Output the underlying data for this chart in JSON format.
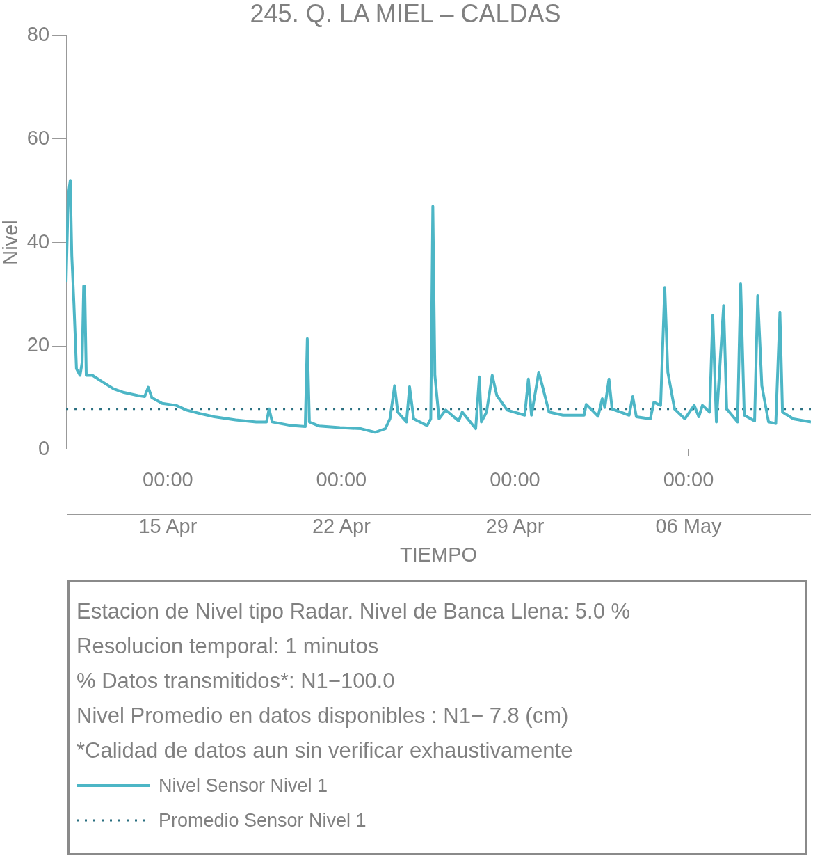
{
  "chart_data": {
    "type": "line",
    "title": "245. Q. LA MIEL – CALDAS",
    "xlabel": "TIEMPO",
    "ylabel": "Nivel",
    "xlim": [
      "--04-10T21:30",
      "--05-10T22:30"
    ],
    "xticks": [
      {
        "value": "--04-15T00:00",
        "label": "00:00\n15 Apr"
      },
      {
        "value": "--04-22T00:00",
        "label": "00:00\n22 Apr"
      },
      {
        "value": "--04-29T00:00",
        "label": "00:00\n29 Apr"
      },
      {
        "value": "--05-06T00:00",
        "label": "00:00\n06 May"
      }
    ],
    "ylim": [
      0,
      80
    ],
    "yticks": [
      0,
      20,
      40,
      60,
      80
    ],
    "grid": false,
    "legend": "bottom",
    "marker": "none",
    "annotations": [
      "Estacion de Nivel tipo Radar. Nivel de Banca Llena:  5.0 %",
      "Resolucion temporal: 1 minutos",
      "% Datos transmitidos*: N1−100.0",
      "Nivel Promedio en datos disponibles : N1−  7.8 (cm)",
      "*Calidad de datos aun sin verificar exhaustivamente"
    ],
    "series": [
      {
        "name": "Nivel Sensor Nivel 1",
        "color": "#4db6c6",
        "line_style": "solid",
        "x": [
          "--04-10T21:30",
          "--04-10T23:30",
          "--04-11T01:30",
          "--04-11T03:00",
          "--04-11T05:00",
          "--04-11T07:30",
          "--04-11T11:00",
          "--04-11T13:00",
          "--04-11T14:30",
          "--04-11T15:30",
          "--04-11T17:00",
          "--04-11T23:00",
          "--04-12T09:00",
          "--04-12T19:30",
          "--04-13T05:30",
          "--04-13T19:00",
          "--04-14T01:30",
          "--04-14T05:00",
          "--04-14T08:30",
          "--04-14T18:30",
          "--04-15T08:00",
          "--04-15T18:00",
          "--04-16T07:30",
          "--04-16T21:00",
          "--04-17T17:30",
          "--04-18T13:30",
          "--04-18T23:30",
          "--04-19T02:00",
          "--04-19T05:00",
          "--04-19T23:30",
          "--04-20T13:00",
          "--04-20T15:00",
          "--04-20T17:00",
          "--04-21T02:30",
          "--04-21T22:30",
          "--04-22T19:00",
          "--04-23T08:30",
          "--04-23T18:30",
          "--04-23T23:00",
          "--04-24T03:30",
          "--04-24T06:30",
          "--04-24T15:00",
          "--04-24T18:00",
          "--04-24T22:00",
          "--04-25T11:00",
          "--04-25T14:30",
          "--04-25T16:30",
          "--04-25T18:30",
          "--04-25T22:30",
          "--04-26T05:00",
          "--04-26T17:30",
          "--04-26T21:00",
          "--04-27T10:00",
          "--04-27T13:30",
          "--04-27T15:30",
          "--04-27T20:30",
          "--04-28T02:00",
          "--04-28T06:30",
          "--04-28T16:30",
          "--04-29T09:30",
          "--04-29T13:00",
          "--04-29T16:00",
          "--04-29T23:00",
          "--04-30T02:30",
          "--04-30T09:00",
          "--04-30T22:30",
          "--05-01T19:00",
          "--05-01T21:00",
          "--05-02T08:30",
          "--05-02T12:30",
          "--05-02T15:00",
          "--05-02T19:00",
          "--05-02T22:00",
          "--05-03T14:30",
          "--05-03T18:00",
          "--05-03T21:30",
          "--05-04T11:00",
          "--05-04T14:30",
          "--05-04T21:00",
          "--05-05T01:00",
          "--05-05T04:00",
          "--05-05T10:30",
          "--05-05T20:30",
          "--05-06T05:30",
          "--05-06T10:00",
          "--05-06T13:30",
          "--05-06T20:30",
          "--05-06T23:30",
          "--05-07T03:00",
          "--05-07T10:00",
          "--05-07T13:00",
          "--05-07T23:30",
          "--05-08T02:30",
          "--05-08T06:00",
          "--05-08T16:00",
          "--05-08T19:00",
          "--05-08T23:00",
          "--05-09T05:30",
          "--05-09T12:30",
          "--05-09T16:30",
          "--05-09T19:00",
          "--05-10T05:30",
          "--05-10T22:30"
        ],
        "values": [
          32.3,
          49,
          52,
          37.4,
          28.4,
          15.6,
          14.3,
          16.8,
          31.6,
          31.6,
          14.3,
          14.3,
          13,
          11.7,
          11,
          10.4,
          10.2,
          12,
          10,
          8.9,
          8.5,
          7.6,
          6.9,
          6.3,
          5.7,
          5.3,
          5.3,
          7.8,
          5.3,
          4.6,
          4.4,
          21.4,
          5.3,
          4.5,
          4.2,
          4,
          3.3,
          4,
          5.9,
          12.3,
          7.2,
          5.3,
          12.1,
          5.9,
          4.6,
          5.9,
          47,
          14.3,
          5.9,
          7.6,
          5.5,
          7.2,
          4,
          14,
          5.3,
          7.2,
          14.3,
          10.4,
          7.6,
          6.6,
          13.6,
          6.6,
          14.9,
          12.3,
          7.2,
          6.6,
          6.6,
          8.7,
          6.4,
          9.8,
          8.1,
          13.6,
          7.8,
          6.6,
          10.2,
          6.3,
          5.9,
          9.1,
          8.5,
          31.3,
          14.9,
          7.8,
          5.9,
          8.5,
          6.3,
          8.5,
          7.2,
          25.9,
          5.3,
          27.8,
          7.8,
          5.3,
          32,
          6.6,
          5.5,
          29.7,
          12.3,
          5.3,
          5,
          26.5,
          7.2,
          5.9,
          5.3
        ]
      },
      {
        "name": "Promedio Sensor Nivel 1",
        "color": "#2a6f80",
        "line_style": "dotted",
        "x": [
          "--04-10T21:30",
          "--05-10T22:30"
        ],
        "values": [
          7.8,
          7.8
        ]
      }
    ]
  }
}
